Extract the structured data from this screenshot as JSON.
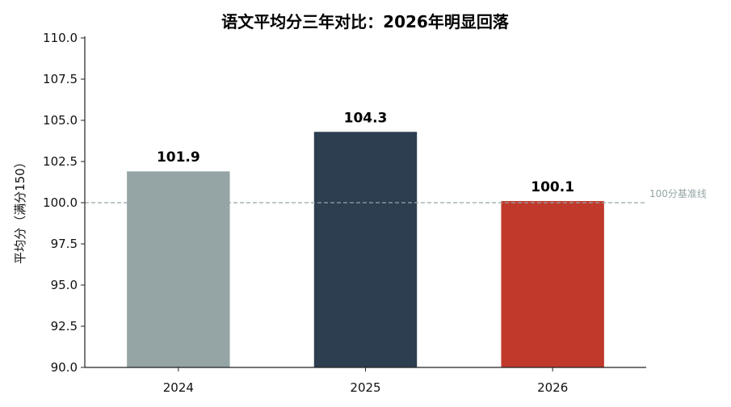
{
  "chart_data": {
    "type": "bar",
    "title": "语文平均分三年对比：2026年明显回落",
    "xlabel": "",
    "ylabel": "平均分（满分150）",
    "categories": [
      "2024",
      "2025",
      "2026"
    ],
    "values": [
      101.9,
      104.3,
      100.1
    ],
    "data_labels": [
      "101.9",
      "104.3",
      "100.1"
    ],
    "bar_colors": [
      "#95a5a6",
      "#2c3e50",
      "#c0392b"
    ],
    "ylim": [
      90.0,
      110.0
    ],
    "yticks": [
      "90.0",
      "92.5",
      "95.0",
      "97.5",
      "100.0",
      "102.5",
      "105.0",
      "107.5",
      "110.0"
    ],
    "reference_line": {
      "value": 100.0,
      "label": "100分基准线",
      "color": "#95a5a6"
    },
    "grid": false,
    "legend": "none"
  }
}
